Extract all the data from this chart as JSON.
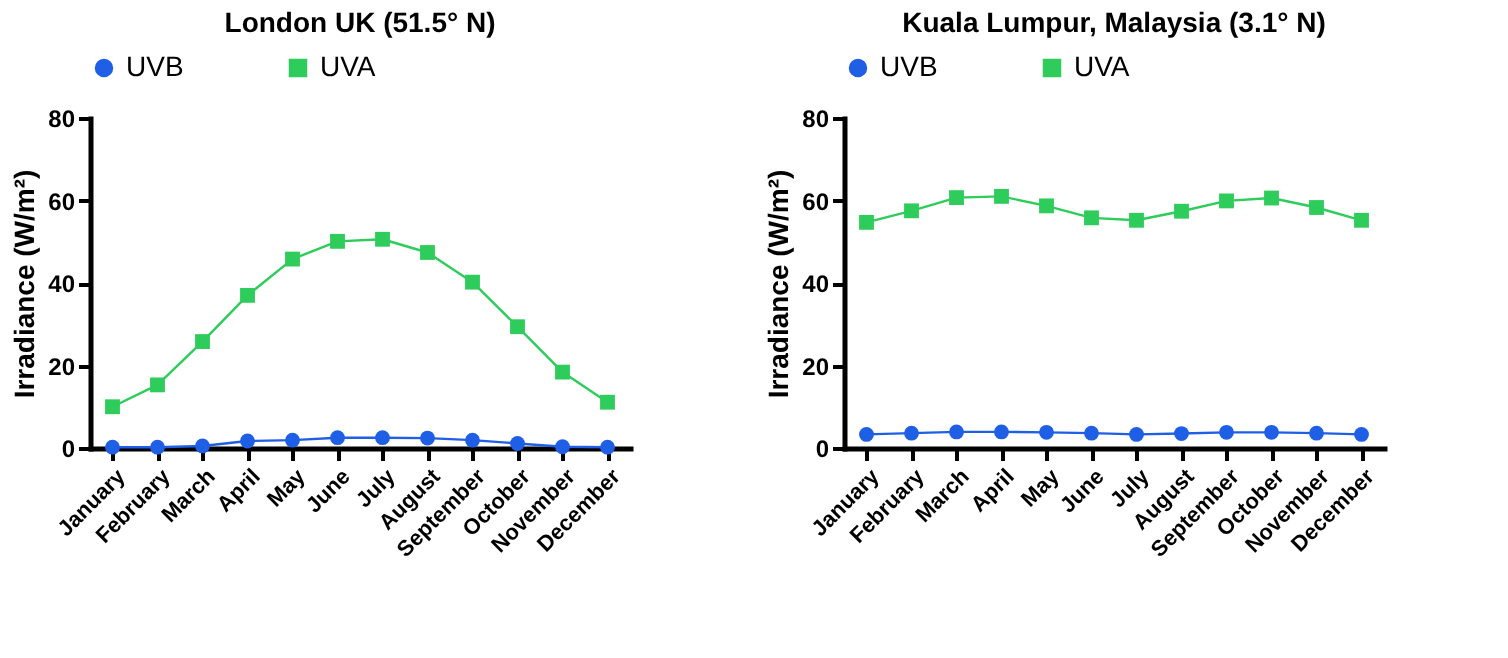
{
  "chart_data": [
    {
      "type": "line",
      "title": "London UK (51.5° N)",
      "ylabel": "Irradiance (W/m²)",
      "categories": [
        "January",
        "February",
        "March",
        "April",
        "May",
        "June",
        "July",
        "August",
        "September",
        "October",
        "November",
        "December"
      ],
      "ylim": [
        0,
        80
      ],
      "yticks": [
        0,
        20,
        40,
        60,
        80
      ],
      "grid": false,
      "legend": "top",
      "series": [
        {
          "name": "UVB",
          "color": "#1f5fe6",
          "marker": "circle",
          "values": [
            0.2,
            0.2,
            0.5,
            1.7,
            1.9,
            2.5,
            2.5,
            2.4,
            1.9,
            1.1,
            0.3,
            0.2
          ]
        },
        {
          "name": "UVA",
          "color": "#2ecc5a",
          "marker": "square",
          "values": [
            10.0,
            15.3,
            25.8,
            37.0,
            45.8,
            50.1,
            50.6,
            47.4,
            40.2,
            29.4,
            18.4,
            11.1
          ]
        }
      ]
    },
    {
      "type": "line",
      "title": "Kuala Lumpur, Malaysia (3.1° N)",
      "ylabel": "Irradiance (W/m²)",
      "categories": [
        "January",
        "February",
        "March",
        "April",
        "May",
        "June",
        "July",
        "August",
        "September",
        "October",
        "November",
        "December"
      ],
      "ylim": [
        0,
        80
      ],
      "yticks": [
        0,
        20,
        40,
        60,
        80
      ],
      "grid": false,
      "legend": "top",
      "series": [
        {
          "name": "UVB",
          "color": "#1f5fe6",
          "marker": "circle",
          "values": [
            3.3,
            3.6,
            3.9,
            3.9,
            3.8,
            3.6,
            3.3,
            3.5,
            3.8,
            3.8,
            3.6,
            3.3
          ]
        },
        {
          "name": "UVA",
          "color": "#2ecc5a",
          "marker": "square",
          "values": [
            54.7,
            57.5,
            60.7,
            61.0,
            58.7,
            55.8,
            55.2,
            57.4,
            59.9,
            60.6,
            58.3,
            55.2
          ]
        }
      ]
    }
  ]
}
